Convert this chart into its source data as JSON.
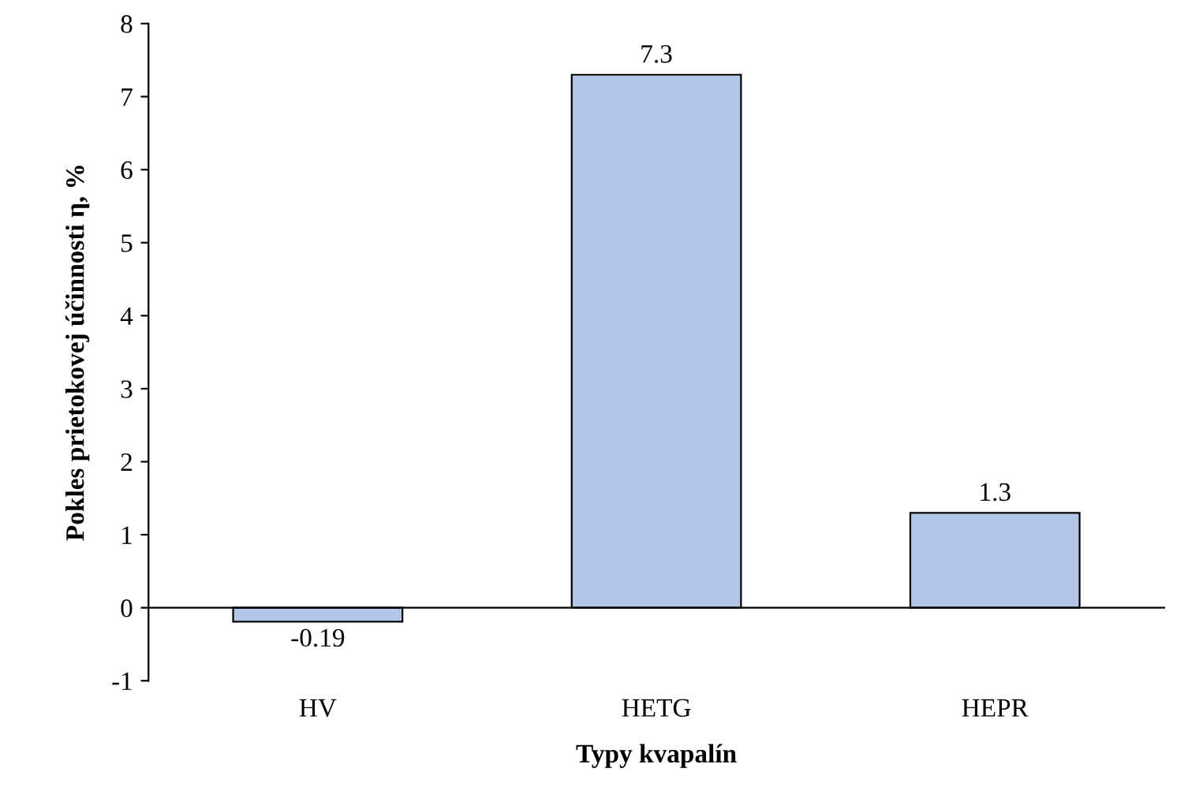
{
  "chart_data": {
    "type": "bar",
    "xlabel": "Typy kvapalín",
    "ylabel": "Pokles prietokovej účinnosti η, %",
    "categories": [
      "HV",
      "HETG",
      "HEPR"
    ],
    "values": [
      -0.19,
      7.3,
      1.3
    ],
    "color": "#b4c6e7",
    "ylim": [
      -1,
      8
    ],
    "yticks": [
      -1,
      0,
      1,
      2,
      3,
      4,
      5,
      6,
      7,
      8
    ],
    "data_labels": true
  }
}
